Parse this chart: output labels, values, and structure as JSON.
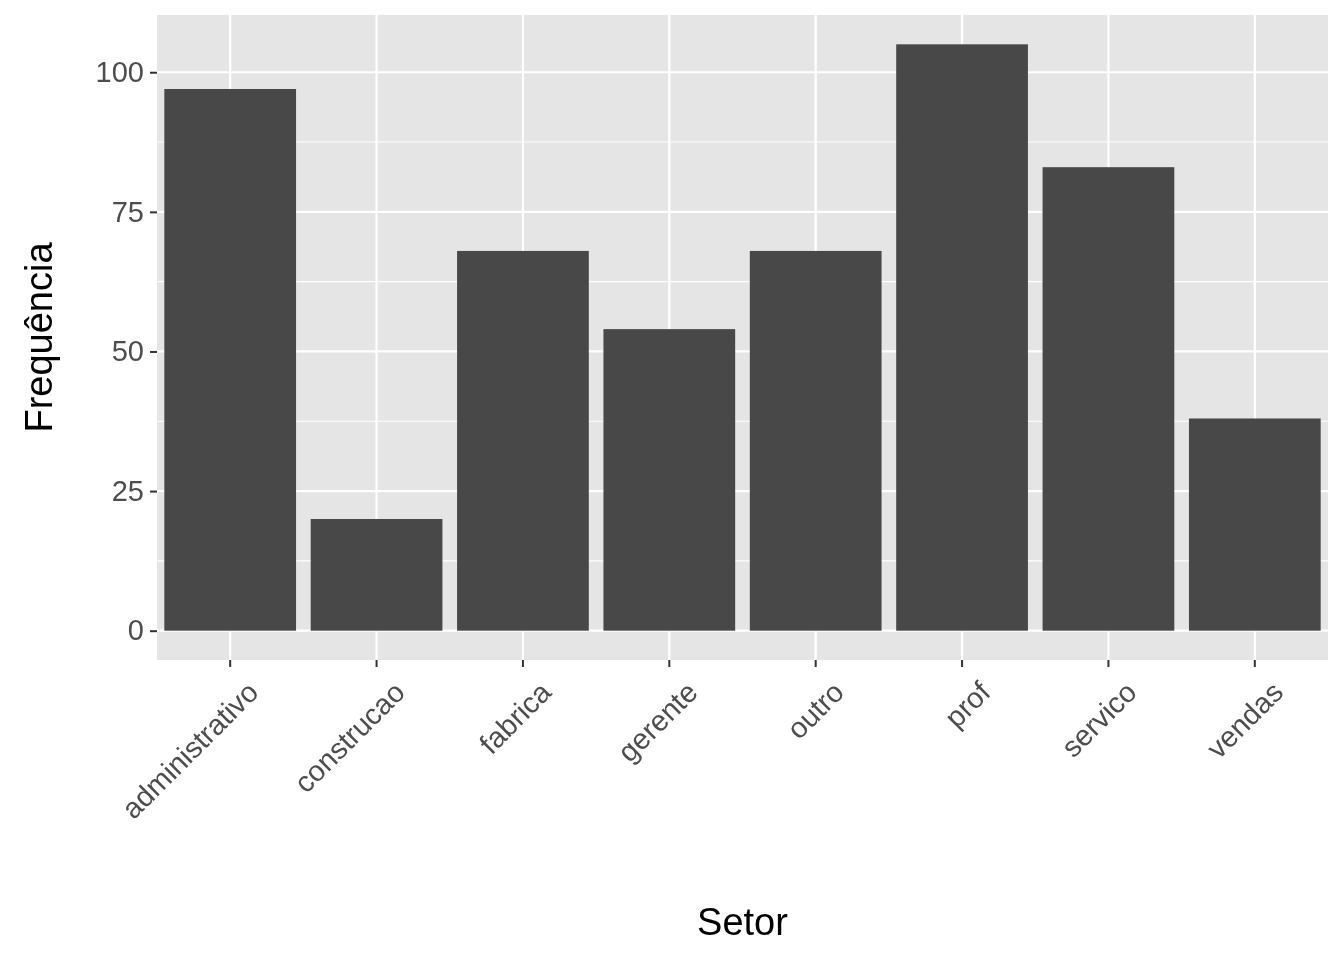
{
  "chart_data": {
    "type": "bar",
    "xlabel": "Setor",
    "ylabel": "Frequência",
    "categories": [
      "administrativo",
      "construcao",
      "fabrica",
      "gerente",
      "outro",
      "prof",
      "servico",
      "vendas"
    ],
    "values": [
      97,
      20,
      68,
      54,
      68,
      105,
      83,
      38
    ],
    "color": "#484848",
    "ylim": [
      -5.25,
      110.25
    ],
    "yticks": [
      0,
      25,
      50,
      75,
      100
    ],
    "grid": true
  }
}
